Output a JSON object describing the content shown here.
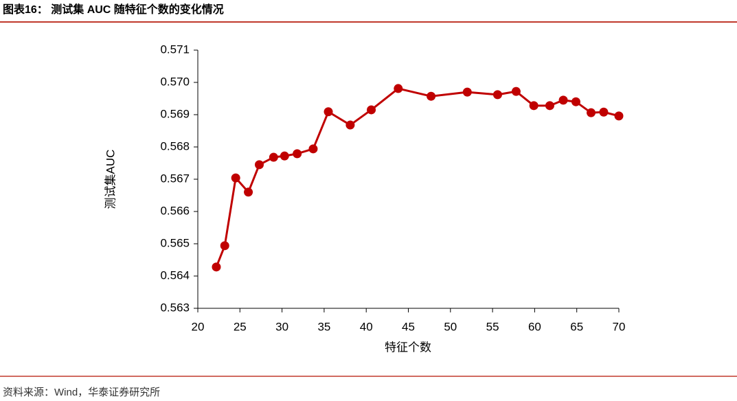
{
  "chart_data": {
    "type": "line",
    "title": "图表16：  测试集 AUC 随特征个数的变化情况",
    "source": "资料来源：Wind，华泰证券研究所",
    "x_label": "特征个数",
    "y_label": "测试集AUC",
    "x": [
      22.2,
      23.2,
      24.5,
      26.0,
      27.3,
      29.0,
      30.3,
      31.8,
      33.7,
      35.5,
      38.1,
      40.6,
      43.8,
      47.7,
      52.0,
      55.6,
      57.8,
      59.9,
      61.8,
      63.4,
      64.9,
      66.7,
      68.2,
      70
    ],
    "series": [
      {
        "name": "测试集AUC",
        "color": "#c00000",
        "values": [
          0.56428,
          0.56494,
          0.56704,
          0.5666,
          0.56745,
          0.56768,
          0.56772,
          0.56779,
          0.56794,
          0.56909,
          0.56868,
          0.56915,
          0.56981,
          0.56957,
          0.5697,
          0.56962,
          0.56972,
          0.56928,
          0.56928,
          0.56945,
          0.5694,
          0.56906,
          0.56908,
          0.56896
        ]
      }
    ],
    "xlim": [
      20,
      70
    ],
    "xticks": [
      20,
      25,
      30,
      35,
      40,
      45,
      50,
      55,
      60,
      65,
      70
    ],
    "ylim": [
      0.563,
      0.571
    ],
    "yticks": [
      0.563,
      0.564,
      0.565,
      0.566,
      0.567,
      0.568,
      0.569,
      {
        "value": 0.57,
        "label": "0.570"
      },
      0.571
    ],
    "grid": false
  }
}
